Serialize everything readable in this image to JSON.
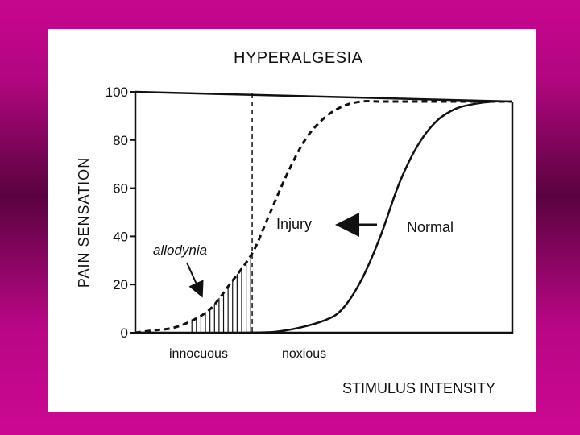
{
  "chart_data": {
    "type": "line",
    "title": "HYPERALGESIA",
    "ylabel": "PAIN SENSATION",
    "xlabel": "STIMULUS INTENSITY",
    "ylim": [
      0,
      100
    ],
    "yticks": [
      "100",
      "80",
      "60",
      "40",
      "20",
      "0"
    ],
    "ytick_values": [
      100,
      80,
      60,
      40,
      20,
      0
    ],
    "xlim": [
      0,
      10
    ],
    "x_regions": [
      "innocuous",
      "noxious"
    ],
    "threshold_x": 3.1,
    "grid": false,
    "legend": "none",
    "series": [
      {
        "name": "Injury",
        "style": "dashed",
        "x": [
          0,
          0.5,
          1.0,
          1.5,
          2.0,
          2.5,
          3.1,
          3.5,
          4.0,
          4.5,
          5.0,
          5.5,
          6.0,
          6.5,
          7.0,
          8.0,
          10.0
        ],
        "values": [
          0,
          1,
          2,
          5,
          10,
          20,
          33,
          47,
          65,
          80,
          89,
          94,
          96,
          96,
          96,
          96,
          96
        ]
      },
      {
        "name": "Normal",
        "style": "solid",
        "x": [
          0,
          3.0,
          4.0,
          5.0,
          5.5,
          6.0,
          6.5,
          7.0,
          7.5,
          8.0,
          8.5,
          9.0,
          9.5,
          10.0
        ],
        "values": [
          0,
          0,
          1,
          5,
          10,
          22,
          40,
          62,
          78,
          88,
          93,
          95,
          96,
          96
        ]
      }
    ],
    "annotations": {
      "allodynia": "allodynia",
      "arrow_label": "Injury",
      "normal_label": "Normal"
    }
  }
}
